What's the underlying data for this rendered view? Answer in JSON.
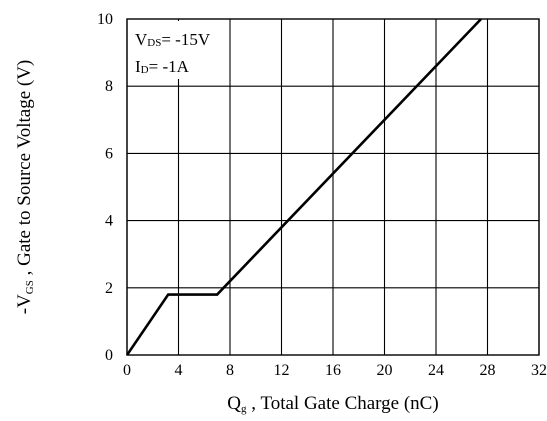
{
  "chart_data": {
    "type": "line",
    "title": "",
    "xlabel": {
      "symbol": "Q",
      "subscript": "g",
      "text": " , Total Gate Charge (nC)"
    },
    "ylabel": {
      "prefix": "-V",
      "subscript": "GS",
      "text": " , Gate to Source Voltage (V)"
    },
    "xlim": [
      0,
      32
    ],
    "ylim": [
      0,
      10
    ],
    "x_ticks": [
      "0",
      "4",
      "8",
      "12",
      "16",
      "20",
      "24",
      "28",
      "32"
    ],
    "y_ticks": [
      "0",
      "2",
      "4",
      "6",
      "8",
      "10"
    ],
    "grid": true,
    "series": [
      {
        "x": [
          0,
          3.2,
          7.0,
          27.5
        ],
        "y": [
          0,
          1.8,
          1.8,
          10
        ]
      }
    ],
    "annotations": [
      {
        "main": "V",
        "sub": "DS",
        "rest": "= -15V"
      },
      {
        "main": "I",
        "sub": "D",
        "rest": "= -1A"
      }
    ]
  }
}
